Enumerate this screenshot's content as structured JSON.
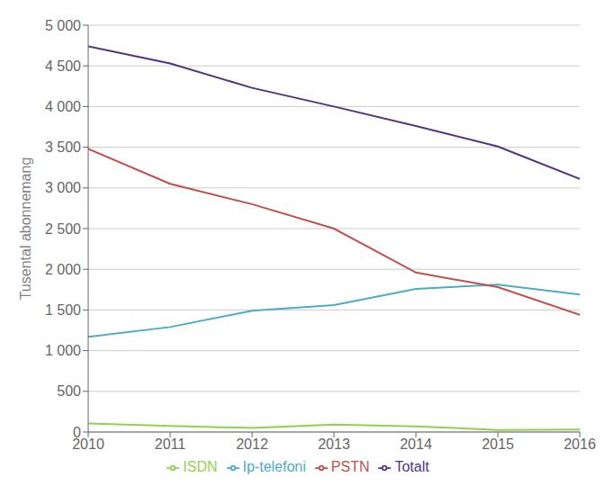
{
  "chart_data": {
    "type": "line",
    "ylabel": "Tusental abonnemang",
    "x": [
      2010,
      2011,
      2012,
      2013,
      2014,
      2015,
      2016
    ],
    "series": [
      {
        "name": "ISDN",
        "color": "#92d050",
        "values": [
          105,
          75,
          50,
          90,
          70,
          25,
          30
        ]
      },
      {
        "name": "Ip-telefoni",
        "color": "#4bacc6",
        "values": [
          1170,
          1290,
          1490,
          1560,
          1760,
          1810,
          1690
        ]
      },
      {
        "name": "PSTN",
        "color": "#c0504d",
        "values": [
          3480,
          3050,
          2800,
          2500,
          1960,
          1780,
          1440
        ]
      },
      {
        "name": "Totalt",
        "color": "#4f3582",
        "values": [
          4740,
          4530,
          4230,
          4000,
          3760,
          3510,
          3110
        ]
      }
    ],
    "xlim": [
      2010,
      2016
    ],
    "xticks": [
      2010,
      2011,
      2012,
      2013,
      2014,
      2015,
      2016
    ],
    "ylim": [
      0,
      5000
    ],
    "yticks": [
      0,
      500,
      {
        "value": 1000,
        "label": "1 000"
      },
      {
        "value": 1500,
        "label": "1 500"
      },
      {
        "value": 2000,
        "label": "2 000"
      },
      {
        "value": 2500,
        "label": "2 500"
      },
      {
        "value": 3000,
        "label": "3 000"
      },
      {
        "value": 3500,
        "label": "3 500"
      },
      {
        "value": 4000,
        "label": "4 000"
      },
      {
        "value": 4500,
        "label": "4 500"
      },
      {
        "value": 5000,
        "label": "5 000"
      }
    ],
    "grid": true,
    "legend": "bottom"
  }
}
